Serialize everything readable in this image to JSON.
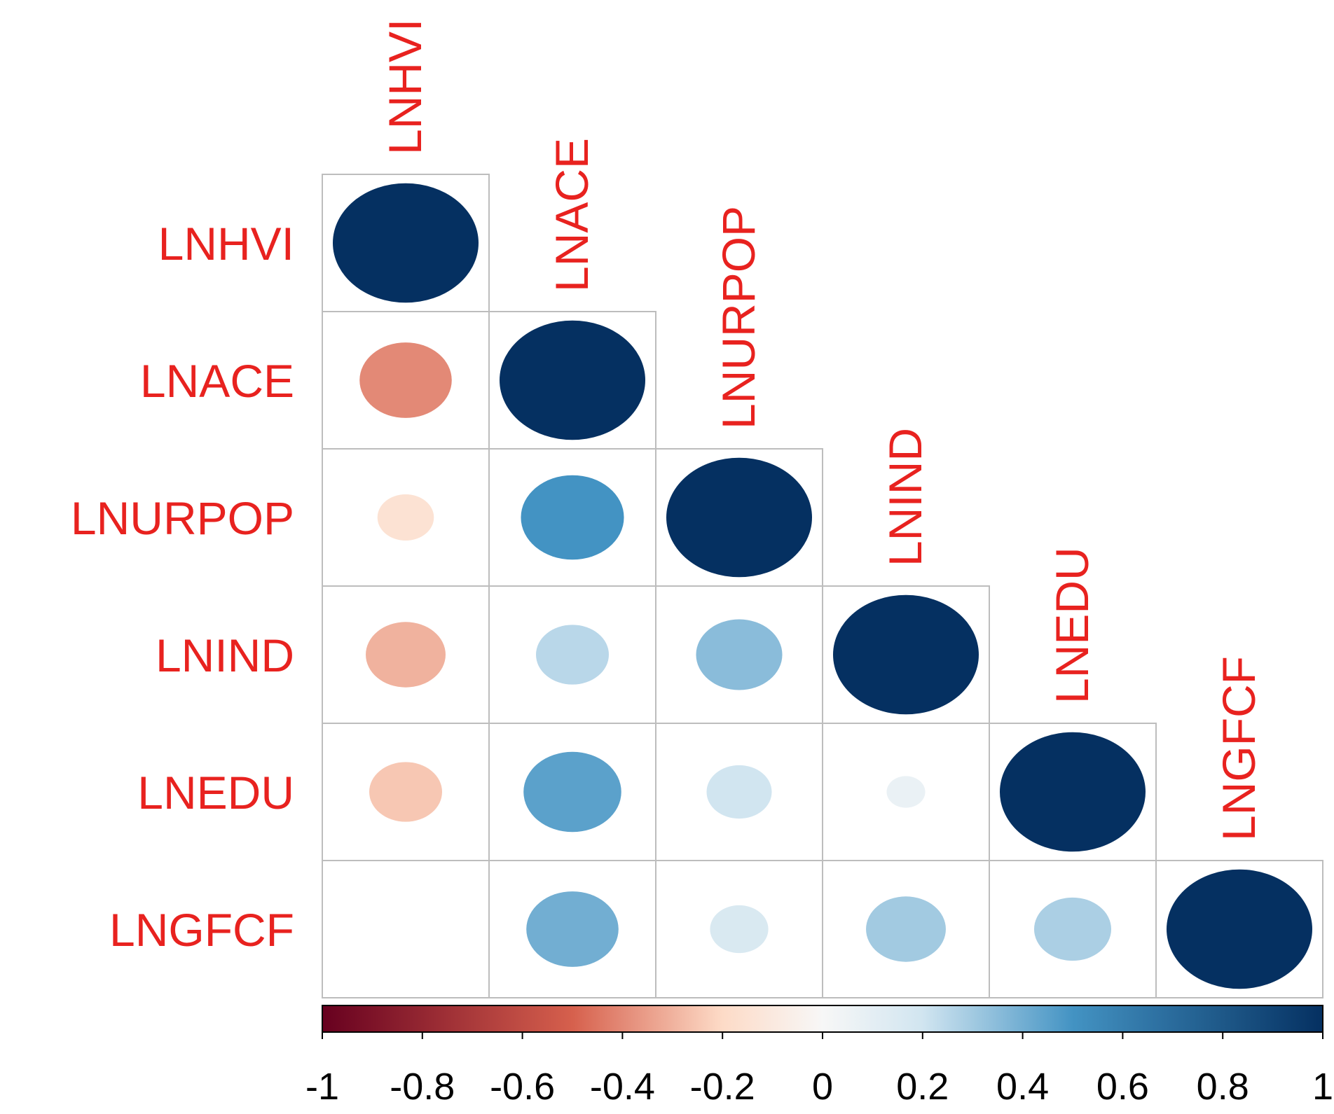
{
  "chart_data": {
    "type": "heatmap",
    "style": "circle correlation matrix, lower triangle",
    "variables": [
      "LNHVI",
      "LNACE",
      "LNURPOP",
      "LNIND",
      "LNEDU",
      "LNGFCF"
    ],
    "matrix": [
      [
        1.0,
        null,
        null,
        null,
        null,
        null
      ],
      [
        -0.4,
        1.0,
        null,
        null,
        null,
        null
      ],
      [
        -0.15,
        0.5,
        1.0,
        null,
        null,
        null
      ],
      [
        -0.3,
        0.25,
        0.35,
        1.0,
        null,
        null
      ],
      [
        -0.25,
        0.45,
        0.2,
        0.07,
        1.0,
        null
      ],
      [
        0.0,
        0.4,
        0.16,
        0.3,
        0.28,
        1.0
      ]
    ],
    "colorbar": {
      "range": [
        -1,
        1
      ],
      "ticks": [
        -1,
        -0.8,
        -0.6,
        -0.4,
        -0.2,
        0,
        0.2,
        0.4,
        0.6,
        0.8,
        1
      ],
      "tick_labels": [
        "-1",
        "-0.8",
        "-0.6",
        "-0.4",
        "-0.2",
        "0",
        "0.2",
        "0.4",
        "0.6",
        "0.8",
        "1"
      ],
      "placement": "bottom"
    },
    "label_color": "#e8221f",
    "colors": {
      "neg_full": "#67001f",
      "neg_mid": "#d6604d",
      "neg_light": "#fddbc7",
      "zero": "#f7f7f7",
      "pos_light": "#d1e5f0",
      "pos_mid": "#4393c3",
      "pos_full": "#053061"
    },
    "title": "",
    "xlabel": "",
    "ylabel": ""
  }
}
